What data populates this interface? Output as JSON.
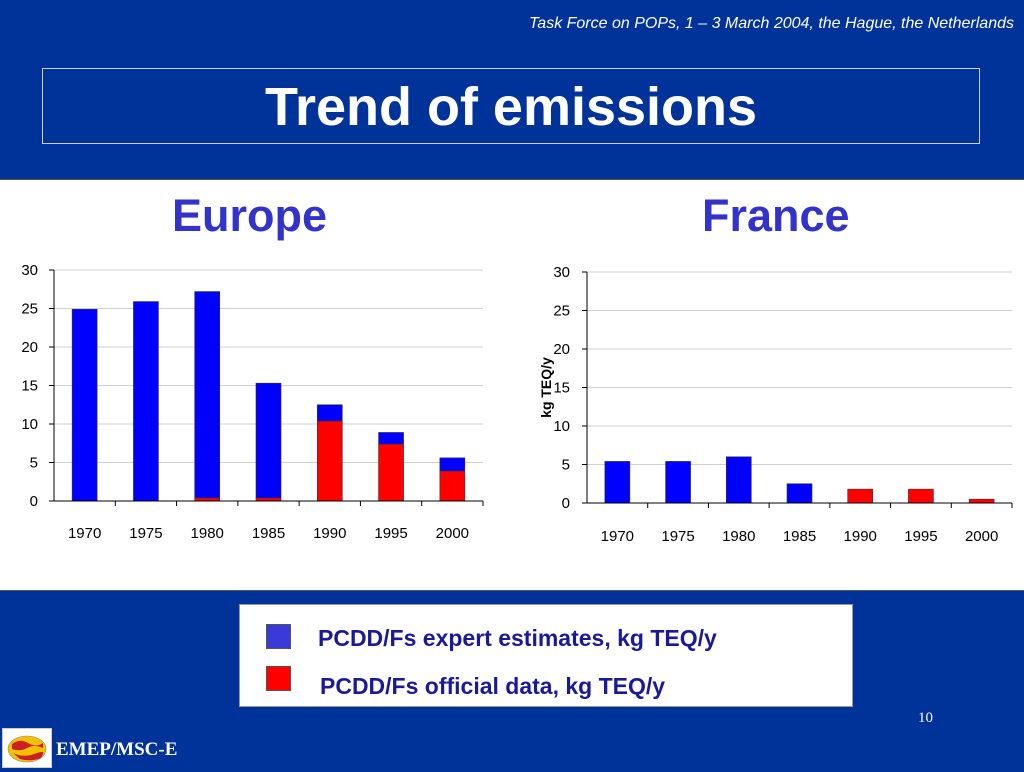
{
  "header": {
    "note": "Task Force on POPs, 1 – 3 March 2004, the Hague, the Netherlands"
  },
  "slide": {
    "title": "Trend of emissions",
    "page_number": "10"
  },
  "footer": {
    "label": "EMEP/MSC-E",
    "logo_icon": "msc-e-globe-logo"
  },
  "colors": {
    "expert": "#0000ff",
    "official": "#ff0000",
    "background": "#003399",
    "chart_title": "#3333cc"
  },
  "legend": [
    {
      "label": "PCDD/Fs expert estimates, kg TEQ/y",
      "color": "#3a3ad8"
    },
    {
      "label": "PCDD/Fs official data, kg TEQ/y",
      "color": "#ff0000"
    }
  ],
  "chart_data": [
    {
      "type": "bar",
      "stacked": true,
      "title": "Europe",
      "xlabel": "",
      "ylabel": "",
      "categories": [
        "1970",
        "1975",
        "1980",
        "1985",
        "1990",
        "1995",
        "2000"
      ],
      "series": [
        {
          "name": "PCDD/Fs official data, kg TEQ/y",
          "values": [
            0,
            0,
            0.4,
            0.4,
            10.4,
            7.4,
            3.9
          ]
        },
        {
          "name": "PCDD/Fs expert estimates, kg TEQ/y",
          "values": [
            24.9,
            25.9,
            26.8,
            14.9,
            2.1,
            1.5,
            1.7
          ]
        }
      ],
      "ylim": [
        0,
        30
      ],
      "yticks": [
        0,
        5,
        10,
        15,
        20,
        25,
        30
      ],
      "grid": true
    },
    {
      "type": "bar",
      "stacked": true,
      "title": "France",
      "xlabel": "",
      "ylabel": "kg TEQ/y",
      "categories": [
        "1970",
        "1975",
        "1980",
        "1985",
        "1990",
        "1995",
        "2000"
      ],
      "series": [
        {
          "name": "PCDD/Fs official data, kg TEQ/y",
          "values": [
            0,
            0,
            0,
            0,
            1.8,
            1.8,
            0.5
          ]
        },
        {
          "name": "PCDD/Fs expert estimates, kg TEQ/y",
          "values": [
            5.4,
            5.4,
            6.0,
            2.5,
            0,
            0,
            0
          ]
        }
      ],
      "ylim": [
        0,
        30
      ],
      "yticks": [
        0,
        5,
        10,
        15,
        20,
        25,
        30
      ],
      "grid": true
    }
  ]
}
